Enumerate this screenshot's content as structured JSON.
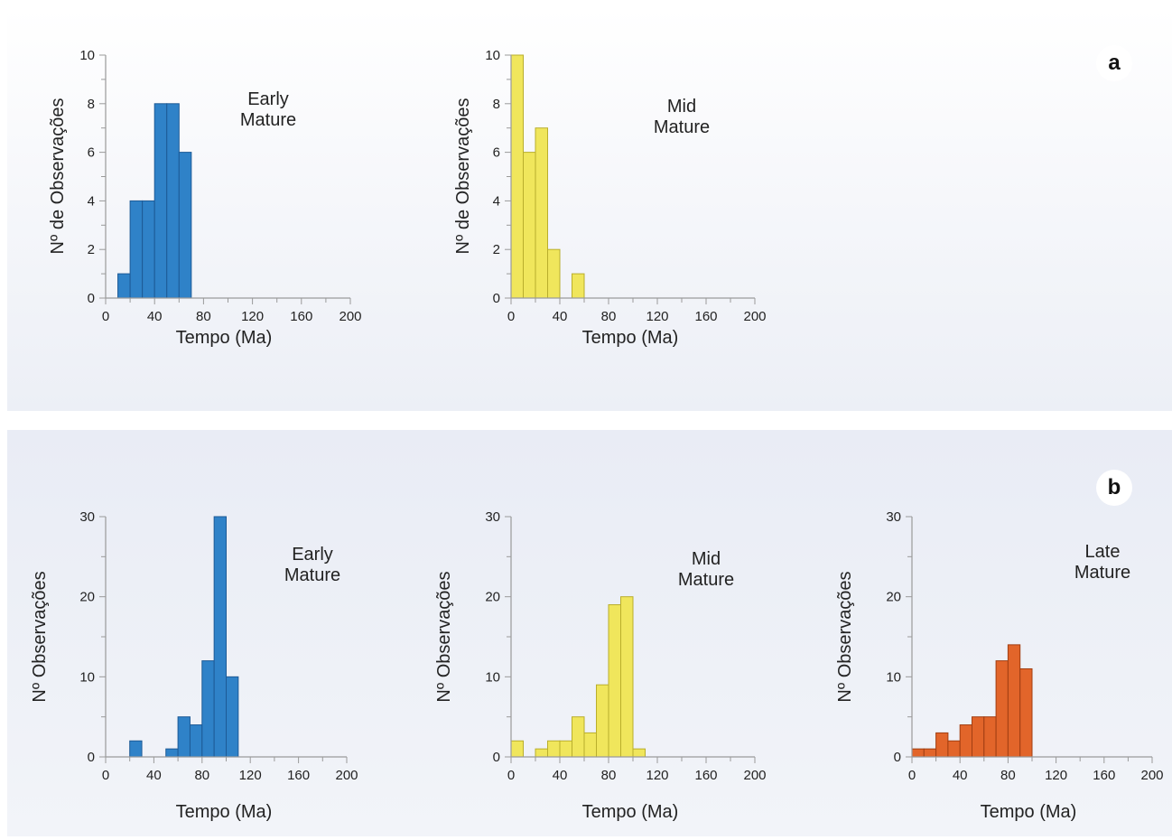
{
  "panels": [
    {
      "label": "a"
    },
    {
      "label": "b"
    }
  ],
  "chart_data": [
    {
      "type": "bar",
      "panel": "a",
      "series": [
        {
          "name": "Early Mature",
          "color": "#2f82c8"
        }
      ],
      "annotation": [
        "Early",
        "Mature"
      ],
      "bin_width": 10,
      "x": [
        10,
        20,
        30,
        40,
        50,
        60
      ],
      "values": [
        1,
        4,
        4,
        8,
        8,
        6
      ],
      "xlim": [
        0,
        200
      ],
      "ylim": [
        0,
        10
      ],
      "xticks": [
        0,
        40,
        80,
        120,
        160,
        200
      ],
      "yticks": [
        0,
        2,
        4,
        6,
        8,
        10
      ],
      "xlabel": "Tempo (Ma)",
      "ylabel": "Nº de Observações",
      "color": "#2f82c8",
      "edge": "#1d5a96"
    },
    {
      "type": "bar",
      "panel": "a",
      "series": [
        {
          "name": "Mid Mature",
          "color": "#f0e65c"
        }
      ],
      "annotation": [
        "Mid",
        "Mature"
      ],
      "bin_width": 10,
      "x": [
        0,
        10,
        20,
        30,
        50
      ],
      "values": [
        10,
        6,
        7,
        2,
        1
      ],
      "xlim": [
        0,
        200
      ],
      "ylim": [
        0,
        10
      ],
      "xticks": [
        0,
        40,
        80,
        120,
        160,
        200
      ],
      "yticks": [
        0,
        2,
        4,
        6,
        8,
        10
      ],
      "xlabel": "Tempo (Ma)",
      "ylabel": "Nº de Observações",
      "color": "#f0e65c",
      "edge": "#b9ae2c"
    },
    {
      "type": "bar",
      "panel": "b",
      "series": [
        {
          "name": "Early Mature",
          "color": "#2f82c8"
        }
      ],
      "annotation": [
        "Early",
        "Mature"
      ],
      "bin_width": 10,
      "x": [
        20,
        50,
        60,
        70,
        80,
        90,
        100
      ],
      "values": [
        2,
        1,
        5,
        4,
        12,
        30,
        10
      ],
      "xlim": [
        0,
        200
      ],
      "ylim": [
        0,
        30
      ],
      "xticks": [
        0,
        40,
        80,
        120,
        160,
        200
      ],
      "yticks": [
        0,
        10,
        20,
        30
      ],
      "xlabel": "Tempo  (Ma)",
      "ylabel": "Nº Observações",
      "color": "#2f82c8",
      "edge": "#1d5a96"
    },
    {
      "type": "bar",
      "panel": "b",
      "series": [
        {
          "name": "Mid Mature",
          "color": "#f0e65c"
        }
      ],
      "annotation": [
        "Mid",
        "Mature"
      ],
      "bin_width": 10,
      "x": [
        0,
        20,
        30,
        40,
        50,
        60,
        70,
        80,
        90,
        100
      ],
      "values": [
        2,
        1,
        2,
        2,
        5,
        3,
        9,
        19,
        20,
        1
      ],
      "xlim": [
        0,
        200
      ],
      "ylim": [
        0,
        30
      ],
      "xticks": [
        0,
        40,
        80,
        120,
        160,
        200
      ],
      "yticks": [
        0,
        10,
        20,
        30
      ],
      "xlabel": "Tempo (Ma)",
      "ylabel": "Nº Observações",
      "color": "#f0e65c",
      "edge": "#b9ae2c"
    },
    {
      "type": "bar",
      "panel": "b",
      "series": [
        {
          "name": "Late Mature",
          "color": "#e2652a"
        }
      ],
      "annotation": [
        "Late",
        "Mature"
      ],
      "bin_width": 10,
      "x": [
        0,
        10,
        20,
        30,
        40,
        50,
        60,
        70,
        80,
        90
      ],
      "values": [
        1,
        1,
        3,
        2,
        4,
        5,
        5,
        12,
        14,
        11
      ],
      "xlim": [
        0,
        200
      ],
      "ylim": [
        0,
        30
      ],
      "xticks": [
        0,
        40,
        80,
        120,
        160,
        200
      ],
      "yticks": [
        0,
        10,
        20,
        30
      ],
      "xlabel": "Tempo (Ma)",
      "ylabel": "Nº Observações",
      "color": "#e2652a",
      "edge": "#a13e12"
    }
  ]
}
